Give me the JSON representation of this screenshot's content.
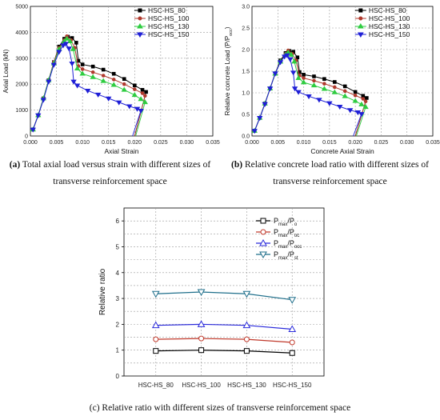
{
  "captions": {
    "a_label": "(a)",
    "a_text": "Total axial load versus strain with different sizes of transverse reinforcement space",
    "b_label": "(b)",
    "b_text": "Relative concrete load ratio with different sizes of transverse reinforcement space",
    "c_text": "(c) Relative ratio with different sizes of transverse reinforcement space"
  },
  "chart_data": [
    {
      "type": "line",
      "xlabel": "Axial Strain",
      "ylabel": "Axial Load (kN)",
      "xlim": [
        0,
        0.035
      ],
      "ylim": [
        0,
        5000
      ],
      "xticks": [
        "0.000",
        "0.005",
        "0.010",
        "0.015",
        "0.020",
        "0.025",
        "0.030",
        "0.035"
      ],
      "yticks": [
        "0",
        "1000",
        "2000",
        "3000",
        "4000",
        "5000"
      ],
      "grid": true,
      "legend_position": "top-right",
      "series": [
        {
          "name": "HSC-HS_80",
          "color": "#000000",
          "marker": "square",
          "x": [
            0.0005,
            0.0015,
            0.0025,
            0.0035,
            0.0045,
            0.0055,
            0.0065,
            0.0072,
            0.008,
            0.0088,
            0.0092,
            0.01,
            0.012,
            0.014,
            0.016,
            0.018,
            0.02,
            0.0215,
            0.0222
          ],
          "y": [
            250,
            800,
            1450,
            2150,
            2850,
            3450,
            3750,
            3830,
            3780,
            3600,
            2900,
            2760,
            2680,
            2560,
            2400,
            2200,
            1950,
            1780,
            1700
          ]
        },
        {
          "name": "HSC-HS_100",
          "color": "#b03a2e",
          "marker": "circle",
          "x": [
            0.0005,
            0.0015,
            0.0025,
            0.0035,
            0.0045,
            0.0055,
            0.0065,
            0.007,
            0.0078,
            0.0085,
            0.0092,
            0.01,
            0.012,
            0.014,
            0.016,
            0.018,
            0.02,
            0.0215,
            0.022
          ],
          "y": [
            250,
            800,
            1450,
            2150,
            2850,
            3400,
            3700,
            3850,
            3700,
            3400,
            2700,
            2580,
            2460,
            2330,
            2180,
            2000,
            1800,
            1650,
            1550
          ]
        },
        {
          "name": "HSC-HS_130",
          "color": "#2ecc40",
          "marker": "triangle-up",
          "x": [
            0.0005,
            0.0015,
            0.0025,
            0.0035,
            0.0045,
            0.0055,
            0.0065,
            0.007,
            0.0076,
            0.0082,
            0.009,
            0.01,
            0.012,
            0.014,
            0.016,
            0.018,
            0.02,
            0.0212,
            0.022
          ],
          "y": [
            250,
            800,
            1450,
            2150,
            2800,
            3350,
            3650,
            3750,
            3650,
            3350,
            2600,
            2400,
            2270,
            2120,
            1970,
            1780,
            1580,
            1420,
            1300
          ]
        },
        {
          "name": "HSC-HS_150",
          "color": "#1f1fd6",
          "marker": "triangle-down",
          "x": [
            0.0005,
            0.0015,
            0.0025,
            0.0035,
            0.0045,
            0.0055,
            0.0063,
            0.0068,
            0.0074,
            0.008,
            0.0083,
            0.009,
            0.011,
            0.013,
            0.015,
            0.017,
            0.019,
            0.0205,
            0.0212
          ],
          "y": [
            250,
            800,
            1400,
            2100,
            2750,
            3250,
            3500,
            3560,
            3380,
            2800,
            2100,
            1950,
            1750,
            1600,
            1450,
            1300,
            1150,
            1050,
            980
          ]
        }
      ]
    },
    {
      "type": "line",
      "xlabel": "Concrete Axial Strain",
      "ylabel": "Relative concrete Load (P/P",
      "ylabel_sub": "occ",
      "ylabel_end": ")",
      "xlim": [
        0,
        0.035
      ],
      "ylim": [
        0,
        3.0
      ],
      "xticks": [
        "0.000",
        "0.005",
        "0.010",
        "0.015",
        "0.020",
        "0.025",
        "0.030",
        "0.035"
      ],
      "yticks": [
        "0.0",
        "0.5",
        "1.0",
        "1.5",
        "2.0",
        "2.5",
        "3.0"
      ],
      "grid": true,
      "legend_position": "top-right",
      "series": [
        {
          "name": "HSC-HS_80",
          "color": "#000000",
          "marker": "square",
          "x": [
            0.0005,
            0.0015,
            0.0025,
            0.0035,
            0.0045,
            0.0055,
            0.0065,
            0.0072,
            0.008,
            0.0088,
            0.0092,
            0.01,
            0.012,
            0.014,
            0.016,
            0.018,
            0.02,
            0.0215,
            0.0222
          ],
          "y": [
            0.12,
            0.42,
            0.75,
            1.1,
            1.45,
            1.75,
            1.92,
            1.97,
            1.95,
            1.82,
            1.48,
            1.42,
            1.38,
            1.32,
            1.25,
            1.15,
            1.02,
            0.93,
            0.88
          ]
        },
        {
          "name": "HSC-HS_100",
          "color": "#b03a2e",
          "marker": "circle",
          "x": [
            0.0005,
            0.0015,
            0.0025,
            0.0035,
            0.0045,
            0.0055,
            0.0065,
            0.007,
            0.0078,
            0.0085,
            0.0092,
            0.01,
            0.012,
            0.014,
            0.016,
            0.018,
            0.02,
            0.0215,
            0.022
          ],
          "y": [
            0.12,
            0.42,
            0.75,
            1.1,
            1.45,
            1.72,
            1.9,
            1.98,
            1.9,
            1.75,
            1.4,
            1.34,
            1.28,
            1.21,
            1.13,
            1.04,
            0.94,
            0.86,
            0.8
          ]
        },
        {
          "name": "HSC-HS_130",
          "color": "#2ecc40",
          "marker": "triangle-up",
          "x": [
            0.0005,
            0.0015,
            0.0025,
            0.0035,
            0.0045,
            0.0055,
            0.0065,
            0.007,
            0.0076,
            0.0082,
            0.009,
            0.01,
            0.012,
            0.014,
            0.016,
            0.018,
            0.02,
            0.0212,
            0.022
          ],
          "y": [
            0.12,
            0.42,
            0.75,
            1.1,
            1.44,
            1.72,
            1.88,
            1.93,
            1.88,
            1.72,
            1.34,
            1.24,
            1.17,
            1.09,
            1.01,
            0.92,
            0.81,
            0.73,
            0.67
          ]
        },
        {
          "name": "HSC-HS_150",
          "color": "#1f1fd6",
          "marker": "triangle-down",
          "x": [
            0.0005,
            0.0015,
            0.0025,
            0.0035,
            0.0045,
            0.0055,
            0.0063,
            0.0068,
            0.0074,
            0.008,
            0.0083,
            0.009,
            0.011,
            0.013,
            0.015,
            0.017,
            0.019,
            0.0205,
            0.0212
          ],
          "y": [
            0.12,
            0.42,
            0.74,
            1.1,
            1.45,
            1.71,
            1.84,
            1.87,
            1.78,
            1.47,
            1.1,
            1.02,
            0.92,
            0.84,
            0.76,
            0.68,
            0.6,
            0.55,
            0.51
          ]
        }
      ]
    },
    {
      "type": "line",
      "xlabel": "",
      "ylabel": "Relative ratio",
      "categories": [
        "HSC-HS_80",
        "HSC-HS_100",
        "HSC-HS_130",
        "HSC-HS_150"
      ],
      "ylim": [
        0,
        6.5
      ],
      "yticks": [
        "0",
        "1",
        "2",
        "3",
        "4",
        "5",
        "6"
      ],
      "grid": true,
      "legend_position": "top-right",
      "series": [
        {
          "name": "P",
          "name_sub": "max",
          "name_mid": "/P",
          "name_sub2": "o",
          "color": "#000000",
          "marker": "square",
          "values": [
            0.97,
            1.0,
            0.97,
            0.89
          ]
        },
        {
          "name": "P",
          "name_sub": "max",
          "name_mid": "/P",
          "name_sub2": "oc",
          "color": "#c0392b",
          "marker": "circle",
          "values": [
            1.42,
            1.45,
            1.42,
            1.3
          ]
        },
        {
          "name": "P",
          "name_sub": "max",
          "name_mid": "/P",
          "name_sub2": "occ",
          "color": "#2b2bdb",
          "marker": "triangle-up",
          "values": [
            1.96,
            2.0,
            1.96,
            1.81
          ]
        },
        {
          "name": "P",
          "name_sub": "max",
          "name_mid": "/P",
          "name_sub2": "st",
          "color": "#1f6f8b",
          "marker": "triangle-down",
          "values": [
            3.18,
            3.25,
            3.18,
            2.95
          ]
        }
      ]
    }
  ]
}
